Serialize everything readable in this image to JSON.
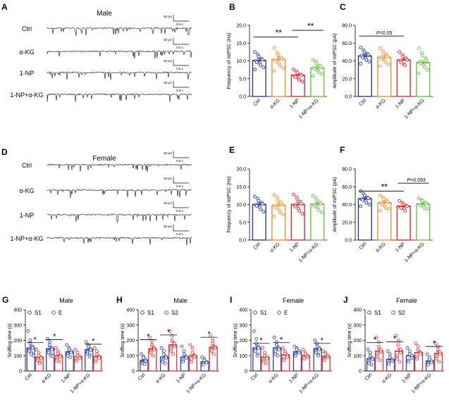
{
  "panels": [
    {
      "letter": "A",
      "type": "traces",
      "title": "Male",
      "rows": [
        {
          "label": "Ctrl",
          "scale_amp": "50 pA",
          "scale_time": "0.5 s"
        },
        {
          "label": "α-KG",
          "scale_amp": "50 pA",
          "scale_time": "0.5 s"
        },
        {
          "label": "1-NP",
          "scale_amp": "50 pA",
          "scale_time": "0.5 s"
        },
        {
          "label": "1-NP+α-KG",
          "scale_amp": "50 pA",
          "scale_time": "0.5 s"
        }
      ]
    },
    {
      "letter": "D",
      "type": "traces",
      "title": "Female",
      "rows": [
        {
          "label": "Ctrl",
          "scale_amp": "50 pA",
          "scale_time": "0.5 s"
        },
        {
          "label": "α-KG",
          "scale_amp": "50 pA",
          "scale_time": "0.5 s"
        },
        {
          "label": "1-NP",
          "scale_amp": "50 pA",
          "scale_time": "0.5 s"
        },
        {
          "label": "1-NP+α-KG",
          "scale_amp": "50 pA",
          "scale_time": "0.5 s"
        }
      ]
    }
  ],
  "colors": {
    "ctrl": "#2a3c9c",
    "akg": "#f0912e",
    "np": "#e8242e",
    "npakg": "#6cc04a",
    "s1": "#3b4ba8",
    "s2": "#e23b3b"
  },
  "chart_data": [
    {
      "letter": "B",
      "type": "bar",
      "title": "",
      "xlabel": "",
      "ylabel": "Frequency of mIPSC (Hz)",
      "ylim": [
        0,
        20
      ],
      "yticks": [
        "0.0",
        "5.0",
        "10.0",
        "15.0",
        "20.0"
      ],
      "categories": [
        "Ctrl",
        "α-KG",
        "1-NP",
        "1-NP+α-KG"
      ],
      "values": [
        10.1,
        10.4,
        6.0,
        8.0
      ],
      "errors": [
        0.6,
        0.7,
        0.4,
        0.5
      ],
      "colors": [
        "#2a3c9c",
        "#f0912e",
        "#e8242e",
        "#6cc04a"
      ],
      "points": [
        [
          12.5,
          11.8,
          11.2,
          10.6,
          10.3,
          10.0,
          9.6,
          9.3,
          8.8,
          8.2,
          7.6
        ],
        [
          13.6,
          12.4,
          11.6,
          11.0,
          10.6,
          10.2,
          9.8,
          9.2,
          8.6,
          8.0,
          7.2
        ],
        [
          7.6,
          7.0,
          6.6,
          6.2,
          6.0,
          5.7,
          5.4,
          5.0,
          4.6,
          4.2
        ],
        [
          10.3,
          9.8,
          9.2,
          8.7,
          8.3,
          8.0,
          7.6,
          7.2,
          6.8,
          6.3,
          5.8
        ]
      ],
      "annotations": [
        {
          "text": "**",
          "from": 0,
          "to": 2,
          "y": 16.7
        },
        {
          "text": "**",
          "from": 2,
          "to": 3,
          "y": 18.6
        }
      ]
    },
    {
      "letter": "C",
      "type": "bar",
      "title": "",
      "xlabel": "",
      "ylabel": "Amplitude of mIPSC (pA)",
      "ylim": [
        0,
        80
      ],
      "yticks": [
        "0.0",
        "20.0",
        "40.0",
        "60.0",
        "80.0"
      ],
      "categories": [
        "Ctrl",
        "α-KG",
        "1-NP",
        "1-NP+α-KG"
      ],
      "values": [
        45.5,
        44.0,
        41.0,
        38.0
      ],
      "errors": [
        2.0,
        2.2,
        1.8,
        2.3
      ],
      "colors": [
        "#2a3c9c",
        "#f0912e",
        "#e8242e",
        "#6cc04a"
      ],
      "points": [
        [
          55,
          52,
          50,
          48,
          47,
          46,
          44,
          43,
          41,
          39,
          37
        ],
        [
          54,
          51,
          49,
          47,
          45,
          44,
          42,
          40,
          38,
          36,
          34
        ],
        [
          50,
          47,
          45,
          43,
          41,
          40,
          38,
          36,
          35
        ],
        [
          54,
          49,
          46,
          43,
          41,
          39,
          37,
          35,
          33,
          30,
          26
        ]
      ],
      "annotations": [
        {
          "text": "P=0.05",
          "from": 0,
          "to": 2,
          "y": 68
        }
      ]
    },
    {
      "letter": "E",
      "type": "bar",
      "title": "",
      "xlabel": "",
      "ylabel": "Frequency of mIPSC (Hz)",
      "ylim": [
        0,
        20
      ],
      "yticks": [
        "0.0",
        "5.0",
        "10.0",
        "15.0",
        "20.0"
      ],
      "categories": [
        "Ctrl",
        "α-KG",
        "1-NP",
        "1-NP+α-KG"
      ],
      "values": [
        10.0,
        9.8,
        10.0,
        10.1
      ],
      "errors": [
        0.5,
        0.6,
        0.6,
        0.5
      ],
      "colors": [
        "#2a3c9c",
        "#f0912e",
        "#e8242e",
        "#6cc04a"
      ],
      "points": [
        [
          12.2,
          11.6,
          11.0,
          10.5,
          10.2,
          9.9,
          9.6,
          9.2,
          8.6,
          8.0
        ],
        [
          12.6,
          12.0,
          11.2,
          10.6,
          10.0,
          9.6,
          9.0,
          8.4,
          7.8,
          7.2,
          6.6
        ],
        [
          12.8,
          12.0,
          11.4,
          10.8,
          10.2,
          9.8,
          9.4,
          8.8,
          8.2,
          7.4
        ],
        [
          12.4,
          11.8,
          11.2,
          10.6,
          10.2,
          9.8,
          9.4,
          9.0,
          8.4,
          7.8
        ]
      ],
      "annotations": []
    },
    {
      "letter": "F",
      "type": "bar",
      "title": "",
      "xlabel": "",
      "ylabel": "Amplitude of mIPSC (pA)",
      "ylim": [
        0,
        80
      ],
      "yticks": [
        "0.0",
        "20.0",
        "40.0",
        "60.0",
        "80.0"
      ],
      "categories": [
        "Ctrl",
        "α-KG",
        "1-NP",
        "1-NP+α-KG"
      ],
      "values": [
        46.5,
        42.0,
        38.0,
        40.5
      ],
      "errors": [
        1.8,
        1.7,
        1.2,
        1.5
      ],
      "colors": [
        "#2a3c9c",
        "#f0912e",
        "#e8242e",
        "#6cc04a"
      ],
      "points": [
        [
          55,
          52,
          50,
          48,
          47,
          46,
          45,
          44,
          42,
          40,
          38
        ],
        [
          50,
          48,
          46,
          44,
          43,
          42,
          40,
          38,
          36,
          35,
          33
        ],
        [
          44,
          42,
          40,
          39,
          38,
          37,
          36,
          35,
          33
        ],
        [
          47,
          45,
          44,
          42,
          41,
          40,
          39,
          38,
          36,
          35
        ]
      ],
      "annotations": [
        {
          "text": "**",
          "from": 0,
          "to": 2,
          "y": 55
        },
        {
          "text": "P=0.093",
          "from": 2,
          "to": 3,
          "y": 64
        }
      ]
    },
    {
      "letter": "G",
      "type": "bar",
      "title": "Male",
      "xlabel": "",
      "ylabel": "Sniffing time (s)",
      "ylim": [
        0,
        400
      ],
      "yticks": [
        "0",
        "100",
        "200",
        "300",
        "400"
      ],
      "categories": [
        "Ctrl",
        "α-KG",
        "1-NP",
        "1-NP+α-KG"
      ],
      "legend": [
        "S1",
        "E"
      ],
      "series": [
        {
          "name": "S1",
          "values": [
            150,
            145,
            125,
            140
          ],
          "errors": [
            15,
            14,
            10,
            12
          ],
          "points": [
            [
              260,
              200,
              180,
              160,
              150,
              140,
              130,
              120,
              110,
              100
            ],
            [
              210,
              190,
              170,
              150,
              140,
              130,
              120,
              110,
              100,
              95
            ],
            [
              170,
              150,
              140,
              130,
              120,
              110,
              100,
              90
            ],
            [
              190,
              170,
              160,
              145,
              135,
              125,
              115,
              105,
              95
            ]
          ]
        },
        {
          "name": "E",
          "values": [
            90,
            100,
            95,
            95
          ],
          "errors": [
            10,
            12,
            10,
            10
          ],
          "points": [
            [
              140,
              120,
              100,
              90,
              85,
              80,
              70,
              60,
              50
            ],
            [
              150,
              130,
              115,
              100,
              90,
              80,
              70,
              60
            ],
            [
              140,
              120,
              100,
              95,
              85,
              75,
              65
            ],
            [
              150,
              130,
              110,
              95,
              85,
              75,
              60
            ]
          ]
        }
      ],
      "annotations": [
        {
          "text": "*",
          "cat": 0,
          "y": 185
        },
        {
          "text": "*",
          "cat": 1,
          "y": 205
        },
        {
          "text": "*",
          "cat": 3,
          "y": 175
        }
      ]
    },
    {
      "letter": "H",
      "type": "bar",
      "title": "Male",
      "xlabel": "",
      "ylabel": "Sniffing time (s)",
      "ylim": [
        0,
        400
      ],
      "yticks": [
        "0",
        "100",
        "200",
        "300",
        "400"
      ],
      "categories": [
        "Ctrl",
        "α-KG",
        "1-NP",
        "1-NP+α-KG"
      ],
      "legend": [
        "S1",
        "S2"
      ],
      "series": [
        {
          "name": "S1",
          "values": [
            70,
            90,
            90,
            60
          ],
          "errors": [
            8,
            12,
            10,
            7
          ],
          "points": [
            [
              110,
              95,
              85,
              75,
              65,
              55,
              50,
              45
            ],
            [
              150,
              130,
              110,
              95,
              85,
              70,
              60,
              50
            ],
            [
              160,
              130,
              110,
              95,
              85,
              70,
              60
            ],
            [
              90,
              80,
              70,
              60,
              55,
              50,
              40
            ]
          ]
        },
        {
          "name": "S2",
          "values": [
            145,
            170,
            100,
            155
          ],
          "errors": [
            15,
            20,
            12,
            14
          ],
          "points": [
            [
              220,
              190,
              170,
              150,
              140,
              130,
              120,
              100
            ],
            [
              260,
              230,
              200,
              180,
              160,
              150,
              130,
              110
            ],
            [
              170,
              150,
              120,
              100,
              90,
              80,
              60
            ],
            [
              230,
              200,
              180,
              160,
              150,
              140,
              130,
              110
            ]
          ]
        }
      ],
      "annotations": [
        {
          "text": "*",
          "cat": 0,
          "y": 205
        },
        {
          "text": "*",
          "cat": 1,
          "y": 235
        },
        {
          "text": "*",
          "cat": 3,
          "y": 220
        }
      ]
    },
    {
      "letter": "I",
      "type": "bar",
      "title": "Female",
      "xlabel": "",
      "ylabel": "Sniffing time (s)",
      "ylim": [
        0,
        400
      ],
      "yticks": [
        "0",
        "100",
        "200",
        "300",
        "400"
      ],
      "categories": [
        "Ctrl",
        "α-KG",
        "1-NP",
        "1-NP+α-KG"
      ],
      "legend": [
        "S1",
        "E"
      ],
      "series": [
        {
          "name": "S1",
          "values": [
            150,
            150,
            125,
            145
          ],
          "errors": [
            15,
            15,
            10,
            12
          ],
          "points": [
            [
              260,
              210,
              180,
              160,
              150,
              140,
              130,
              110,
              100
            ],
            [
              220,
              190,
              170,
              150,
              140,
              130,
              110,
              100
            ],
            [
              160,
              150,
              140,
              130,
              120,
              110,
              100
            ],
            [
              200,
              180,
              160,
              150,
              140,
              130,
              120,
              110,
              100
            ]
          ]
        },
        {
          "name": "E",
          "values": [
            90,
            105,
            100,
            95
          ],
          "errors": [
            10,
            12,
            9,
            9
          ],
          "points": [
            [
              150,
              120,
              100,
              90,
              80,
              70,
              60,
              50
            ],
            [
              150,
              130,
              115,
              100,
              90,
              80,
              70
            ],
            [
              140,
              120,
              110,
              100,
              90,
              80
            ],
            [
              130,
              120,
              110,
              100,
              90,
              80,
              70
            ]
          ]
        }
      ],
      "annotations": [
        {
          "text": "*",
          "cat": 0,
          "y": 180
        },
        {
          "text": "*",
          "cat": 1,
          "y": 185
        },
        {
          "text": "*",
          "cat": 3,
          "y": 180
        }
      ]
    },
    {
      "letter": "J",
      "type": "bar",
      "title": "Female",
      "xlabel": "",
      "ylabel": "Sniffing time (s)",
      "ylim": [
        0,
        400
      ],
      "yticks": [
        "0",
        "100",
        "200",
        "300",
        "400"
      ],
      "categories": [
        "Ctrl",
        "α-KG",
        "1-NP",
        "1-NP+α-KG"
      ],
      "legend": [
        "S1",
        "S2"
      ],
      "series": [
        {
          "name": "S1",
          "values": [
            80,
            75,
            100,
            65
          ],
          "errors": [
            10,
            10,
            10,
            8
          ],
          "points": [
            [
              140,
              120,
              100,
              85,
              75,
              60,
              50,
              40
            ],
            [
              130,
              110,
              90,
              75,
              65,
              55,
              45
            ],
            [
              150,
              130,
              110,
              100,
              85,
              70,
              60
            ],
            [
              110,
              90,
              75,
              65,
              55,
              50,
              40
            ]
          ]
        },
        {
          "name": "S2",
          "values": [
            130,
            130,
            120,
            115
          ],
          "errors": [
            15,
            18,
            12,
            12
          ],
          "points": [
            [
              220,
              190,
              160,
              140,
              125,
              110,
              90,
              70
            ],
            [
              230,
              200,
              170,
              140,
              120,
              100,
              80,
              60
            ],
            [
              180,
              160,
              140,
              120,
              110,
              95,
              80
            ],
            [
              180,
              160,
              140,
              125,
              110,
              95,
              80,
              60
            ]
          ]
        }
      ],
      "annotations": [
        {
          "text": "*",
          "cat": 0,
          "y": 185
        },
        {
          "text": "*",
          "cat": 1,
          "y": 190
        },
        {
          "text": "*",
          "cat": 3,
          "y": 160
        }
      ]
    }
  ]
}
